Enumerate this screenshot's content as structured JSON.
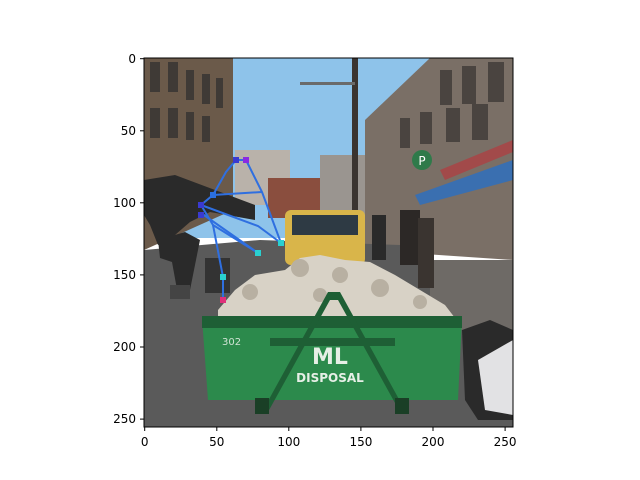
{
  "figure": {
    "x_ticks": [
      "0",
      "50",
      "100",
      "150",
      "200",
      "250"
    ],
    "y_ticks": [
      "0",
      "50",
      "100",
      "150",
      "200",
      "250"
    ],
    "photo": {
      "scene": "city street with green dumpster full of rubble, person on rollerblades, yellow taxi",
      "dumpster_text_1": "ML",
      "dumpster_text_2": "DISPOSAL",
      "dumpster_number": "302",
      "sign_letter": "P"
    }
  },
  "skeleton": {
    "colors": {
      "limb": "#2f6fe0",
      "joint_magenta": "#e0307a",
      "joint_cyan": "#2ad0d0",
      "joint_blue": "#3a3ad0",
      "joint_purple": "#8a2be2"
    }
  },
  "colors": {
    "sky": "#8ec3ea",
    "dumpster": "#2c8a4c",
    "dumpster_dark": "#1e5f35",
    "building_left": "#6b5a4a",
    "building_right": "#7a6f66",
    "road": "#5a5a5a",
    "rubble": "#d8d2c6",
    "taxi": "#d9b54a"
  }
}
